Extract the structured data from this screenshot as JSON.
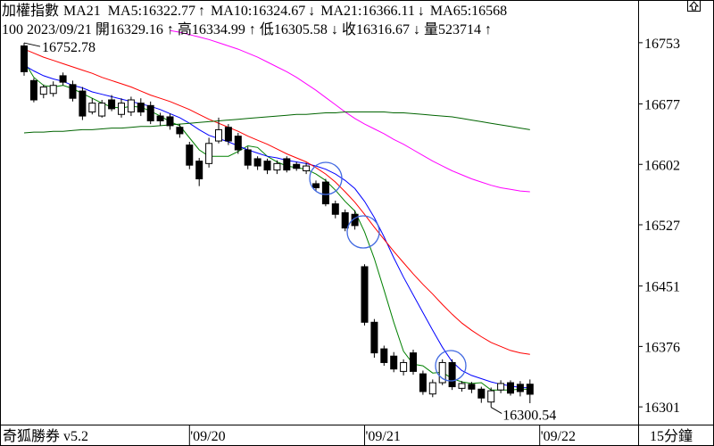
{
  "chart_data": {
    "type": "candlestick",
    "title": "加權指數",
    "indicator": "MA21",
    "info": [
      "100",
      "2023/09/21",
      "開16329.16",
      "↑",
      "高16334.99",
      "↑",
      "低16305.58",
      "↓",
      "收16316.67",
      "↓",
      "量523714",
      "↑"
    ],
    "footer_left": "奇狐勝券 v5.2",
    "timeframe": "15分鐘",
    "categories": [
      null,
      null,
      null,
      null,
      null,
      null,
      null,
      null,
      null,
      null,
      null,
      null,
      null,
      null,
      null,
      null,
      null,
      "'09/20",
      null,
      null,
      null,
      null,
      null,
      null,
      null,
      null,
      null,
      null,
      null,
      null,
      null,
      null,
      null,
      null,
      null,
      "'09/21",
      null,
      null,
      null,
      null,
      null,
      null,
      null,
      null,
      null,
      null,
      null,
      null,
      null,
      null,
      null,
      null,
      null,
      "'09/22"
    ],
    "open": [
      16749,
      16706,
      16689,
      16690,
      16712,
      16701,
      16693,
      16667,
      16662,
      16682,
      16664,
      16667,
      16678,
      16675,
      16662,
      16661,
      16648,
      16626,
      16606,
      16603,
      16631,
      16648,
      16637,
      16620,
      16609,
      16606,
      16595,
      16609,
      16602,
      16594,
      16578,
      16580,
      16553,
      16542,
      16540,
      16475,
      16406,
      16373,
      16364,
      16345,
      16368,
      16342,
      16317,
      16331,
      16356,
      16324,
      16329,
      16323,
      16307,
      16322,
      16331,
      16329,
      16329.16,
      null
    ],
    "high": [
      16752.78,
      16709,
      16701,
      16705,
      16716,
      16706,
      16698,
      16684,
      16682,
      16688,
      16684,
      16686,
      16684,
      16680,
      16666,
      16665,
      16652,
      16630,
      16610,
      16635,
      16660,
      16652,
      16641,
      16624,
      16612,
      16609,
      16607,
      16612,
      16605,
      16604,
      16582,
      16584,
      16557,
      16546,
      16545,
      16478,
      16410,
      16377,
      16369,
      16360,
      16372,
      16346,
      16335,
      16360,
      16360,
      16333,
      16332,
      16326,
      16325,
      16334,
      16334,
      16333,
      16334.99,
      null
    ],
    "low": [
      16712,
      16679,
      16684,
      16686,
      16700,
      16680,
      16657,
      16664,
      16660,
      16668,
      16660,
      16662,
      16662,
      16652,
      16650,
      16645,
      16635,
      16596,
      16575,
      16598,
      16628,
      16626,
      16615,
      16596,
      16595,
      16590,
      16590,
      16592,
      16594,
      16590,
      16569,
      16550,
      16535,
      16519,
      16521,
      16402,
      16362,
      16352,
      16344,
      16340,
      16341,
      16316,
      16313,
      16328,
      16322,
      16320,
      16318,
      16306,
      16300.54,
      16318,
      16315,
      16314,
      16305.58,
      null
    ],
    "close": [
      16717,
      16682,
      16698,
      16700,
      16704,
      16684,
      16662,
      16678,
      16678,
      16671,
      16678,
      16682,
      16667,
      16656,
      16656,
      16650,
      16640,
      16601,
      16584,
      16628,
      16645,
      16631,
      16620,
      16601,
      16600,
      16595,
      16603,
      16595,
      16597,
      16600,
      16573,
      16553,
      16540,
      16523,
      16526,
      16406,
      16368,
      16356,
      16348,
      16356,
      16345,
      16320,
      16331,
      16356,
      16326,
      16330,
      16323,
      16312,
      16321,
      16330,
      16318,
      16320,
      16316.67,
      null
    ],
    "up_color": "#ffffff",
    "down_color": "#000000",
    "edge_color": "#000000",
    "series": [
      {
        "name": "MA5:16322.77",
        "trend": "↑",
        "color": "#008000",
        "values": [
          16730,
          16710,
          16700,
          16698,
          16700,
          16696,
          16690,
          16684,
          16678,
          16673,
          16672,
          16674,
          16673,
          16668,
          16662,
          16655,
          16650,
          16635,
          16620,
          16612,
          16612,
          16612,
          16618,
          16625,
          16623,
          16612,
          16605,
          16600,
          16598,
          16596,
          16590,
          16582,
          16570,
          16556,
          16544,
          16518,
          16485,
          16446,
          16406,
          16370,
          16354,
          16352,
          16343,
          16344,
          16336,
          16332,
          16330,
          16331,
          16322,
          16322,
          16322,
          16323,
          16322.77,
          null
        ]
      },
      {
        "name": "MA10:16324.67",
        "trend": "↓",
        "color": "#0000ff",
        "values": [
          16725,
          16718,
          16712,
          16708,
          16705,
          16700,
          16697,
          16692,
          16689,
          16686,
          16683,
          16680,
          16677,
          16674,
          16670,
          16665,
          16660,
          16653,
          16645,
          16638,
          16634,
          16630,
          16625,
          16620,
          16616,
          16612,
          16610,
          16607,
          16605,
          16603,
          16600,
          16596,
          16590,
          16582,
          16572,
          16556,
          16536,
          16512,
          16486,
          16462,
          16440,
          16418,
          16396,
          16375,
          16357,
          16346,
          16340,
          16336,
          16332,
          16329,
          16327,
          16325,
          16324.67,
          null
        ]
      },
      {
        "name": "MA21:16366.11",
        "trend": "↓",
        "color": "#ff0000",
        "values": [
          16745,
          16740,
          16735,
          16731,
          16727,
          16723,
          16719,
          16715,
          16710,
          16706,
          16702,
          16698,
          16693,
          16688,
          16684,
          16680,
          16675,
          16670,
          16664,
          16658,
          16653,
          16648,
          16643,
          16637,
          16632,
          16627,
          16621,
          16615,
          16610,
          16605,
          16598,
          16590,
          16580,
          16568,
          16555,
          16540,
          16524,
          16509,
          16494,
          16480,
          16466,
          16453,
          16441,
          16428,
          16416,
          16405,
          16396,
          16388,
          16381,
          16376,
          16371,
          16368,
          16366.11,
          null
        ]
      },
      {
        "name": "MA65:16568",
        "color": "#ff00ff",
        "values": [
          null,
          null,
          null,
          null,
          null,
          null,
          null,
          null,
          null,
          null,
          null,
          null,
          null,
          null,
          null,
          16768,
          16766,
          16763,
          16760,
          16757,
          16753,
          16749,
          16745,
          16740,
          16735,
          16729,
          16723,
          16717,
          16710,
          16702,
          16694,
          16685,
          16676,
          16667,
          16659,
          16652,
          16646,
          16640,
          16633,
          16627,
          16620,
          16613,
          16606,
          16600,
          16594,
          16589,
          16584,
          16580,
          16576,
          16573,
          16571,
          16569,
          16568,
          null
        ]
      },
      {
        "color": "#006400",
        "values": [
          16641,
          16642,
          16642,
          16643,
          16643,
          16644,
          16645,
          16645,
          16646,
          16647,
          16647,
          16648,
          16649,
          16649,
          16650,
          16651,
          16652,
          16653,
          16654,
          16655,
          16656,
          16657,
          16658,
          16659,
          16660,
          16661,
          16662,
          16663,
          16664,
          16664,
          16665,
          16666,
          16666,
          16667,
          16667,
          16667,
          16667,
          16667,
          16666,
          16666,
          16665,
          16664,
          16663,
          16662,
          16661,
          16659,
          16657,
          16655,
          16653,
          16651,
          16649,
          16647,
          16645,
          null
        ]
      }
    ],
    "ylim": [
      16279,
      16806
    ],
    "yticks": [
      16753,
      16677,
      16602,
      16527,
      16451,
      16376,
      16301
    ]
  }
}
